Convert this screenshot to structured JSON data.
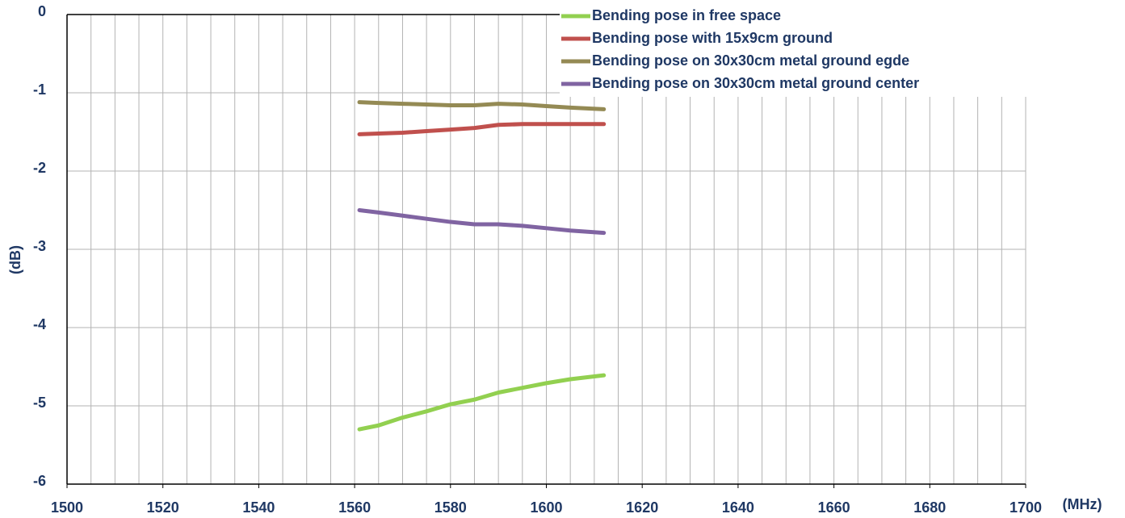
{
  "chart_data": {
    "type": "line",
    "x_label": "(MHz)",
    "y_label": "(dB)",
    "x": [
      1561,
      1565,
      1570,
      1575,
      1580,
      1585,
      1590,
      1595,
      1600,
      1605,
      1612
    ],
    "series": [
      {
        "name": "Bending pose in free space",
        "color": "#92d050",
        "values": [
          -5.3,
          -5.25,
          -5.15,
          -5.07,
          -4.98,
          -4.92,
          -4.83,
          -4.77,
          -4.71,
          -4.66,
          -4.61
        ]
      },
      {
        "name": "Bending pose with 15x9cm ground",
        "color": "#c0504d",
        "values": [
          -1.53,
          -1.52,
          -1.51,
          -1.49,
          -1.47,
          -1.45,
          -1.41,
          -1.4,
          -1.4,
          -1.4,
          -1.4
        ]
      },
      {
        "name": "Bending pose on 30x30cm metal ground egde",
        "color": "#948a54",
        "values": [
          -1.12,
          -1.13,
          -1.14,
          -1.15,
          -1.16,
          -1.16,
          -1.14,
          -1.15,
          -1.17,
          -1.19,
          -1.21
        ]
      },
      {
        "name": "Bending pose on 30x30cm metal ground center",
        "color": "#8064a2",
        "values": [
          -2.5,
          -2.53,
          -2.57,
          -2.61,
          -2.65,
          -2.68,
          -2.68,
          -2.7,
          -2.73,
          -2.76,
          -2.79
        ]
      }
    ],
    "xlim": [
      1500,
      1700
    ],
    "xticks": [
      1500,
      1520,
      1540,
      1560,
      1580,
      1600,
      1620,
      1640,
      1660,
      1680,
      1700
    ],
    "xgrid": [
      1505,
      1510,
      1515,
      1520,
      1525,
      1530,
      1535,
      1540,
      1545,
      1550,
      1555,
      1560,
      1565,
      1570,
      1575,
      1580,
      1585,
      1590,
      1595,
      1600,
      1605,
      1610,
      1615,
      1620,
      1625,
      1630,
      1635,
      1640,
      1645,
      1650,
      1655,
      1660,
      1665,
      1670,
      1675,
      1680,
      1685,
      1690,
      1695,
      1700
    ],
    "ylim": [
      -6,
      0
    ],
    "yticks": [
      -6,
      -5,
      -4,
      -3,
      -2,
      -1,
      0
    ],
    "grid": true,
    "legend": "top-right"
  }
}
